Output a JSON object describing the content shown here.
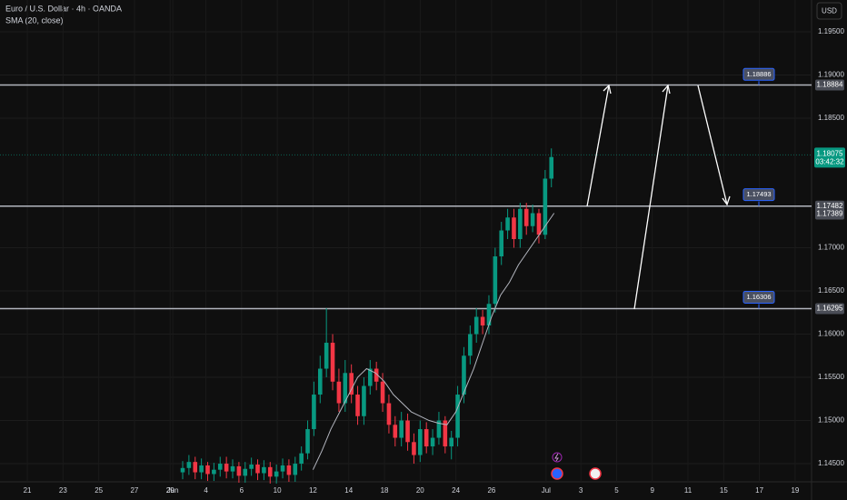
{
  "chart_data": {
    "type": "candlestick",
    "title": "Euro / U.S. Dollar · 4h · OANDA",
    "indicator": "SMA (20, close)",
    "currency": "USD",
    "up_color": "#089981",
    "down_color": "#f23645",
    "xlim": [
      -1.53,
      43.92
    ],
    "ylim": [
      1.1429,
      1.19868
    ],
    "xticks": [
      {
        "value": 0,
        "label": "21"
      },
      {
        "value": 2,
        "label": "23"
      },
      {
        "value": 4,
        "label": "25"
      },
      {
        "value": 6,
        "label": "27"
      },
      {
        "value": 8,
        "label": "29"
      },
      {
        "value": 8.15,
        "label": "Jun"
      },
      {
        "value": 10,
        "label": "4"
      },
      {
        "value": 12,
        "label": "6"
      },
      {
        "value": 14,
        "label": "10"
      },
      {
        "value": 16,
        "label": "12"
      },
      {
        "value": 18,
        "label": "14"
      },
      {
        "value": 20,
        "label": "18"
      },
      {
        "value": 22,
        "label": "20"
      },
      {
        "value": 24,
        "label": "24"
      },
      {
        "value": 26,
        "label": "26"
      },
      {
        "value": 29.05,
        "label": "Jul"
      },
      {
        "value": 31,
        "label": "3"
      },
      {
        "value": 33,
        "label": "5"
      },
      {
        "value": 35,
        "label": "9"
      },
      {
        "value": 37,
        "label": "11"
      },
      {
        "value": 39,
        "label": "15"
      },
      {
        "value": 41,
        "label": "17"
      },
      {
        "value": 43,
        "label": "19"
      }
    ],
    "yticks": [
      {
        "value": 1.145,
        "label": "1.14500"
      },
      {
        "value": 1.15,
        "label": "1.15000"
      },
      {
        "value": 1.155,
        "label": "1.15500"
      },
      {
        "value": 1.16,
        "label": "1.16000"
      },
      {
        "value": 1.165,
        "label": "1.16500"
      },
      {
        "value": 1.17,
        "label": "1.17000"
      },
      {
        "value": 1.185,
        "label": "1.18500"
      },
      {
        "value": 1.19,
        "label": "1.19000"
      },
      {
        "value": 1.195,
        "label": "1.19500"
      }
    ],
    "grid": true,
    "candles": {
      "x": [
        8.7,
        9.05,
        9.4,
        9.75,
        10.1,
        10.45,
        10.8,
        11.15,
        11.5,
        11.85,
        12.2,
        12.55,
        12.9,
        13.25,
        13.6,
        13.95,
        14.3,
        14.65,
        15.0,
        15.35,
        15.7,
        16.05,
        16.4,
        16.75,
        17.1,
        17.45,
        17.8,
        18.15,
        18.5,
        18.85,
        19.2,
        19.55,
        19.9,
        20.25,
        20.6,
        20.95,
        21.3,
        21.65,
        22.0,
        22.35,
        22.7,
        23.05,
        23.4,
        23.75,
        24.1,
        24.45,
        24.8,
        25.15,
        25.5,
        25.85,
        26.2,
        26.55,
        26.9,
        27.25,
        27.6,
        27.95,
        28.3,
        28.65,
        29.0,
        29.35
      ],
      "open": [
        1.144,
        1.1445,
        1.1452,
        1.144,
        1.1448,
        1.1438,
        1.1443,
        1.145,
        1.1441,
        1.1447,
        1.1436,
        1.1444,
        1.1449,
        1.1439,
        1.1446,
        1.1435,
        1.1441,
        1.1448,
        1.1437,
        1.145,
        1.1462,
        1.149,
        1.153,
        1.156,
        1.159,
        1.1545,
        1.152,
        1.1555,
        1.153,
        1.1505,
        1.154,
        1.156,
        1.1545,
        1.152,
        1.1495,
        1.148,
        1.15,
        1.1475,
        1.146,
        1.149,
        1.147,
        1.148,
        1.15,
        1.147,
        1.148,
        1.153,
        1.1575,
        1.16,
        1.162,
        1.161,
        1.1635,
        1.169,
        1.172,
        1.1735,
        1.171,
        1.1745,
        1.1725,
        1.174,
        1.1715,
        1.178
      ],
      "high": [
        1.1453,
        1.146,
        1.1458,
        1.1456,
        1.1452,
        1.1451,
        1.1458,
        1.1458,
        1.1455,
        1.1452,
        1.1452,
        1.1457,
        1.1455,
        1.1454,
        1.1452,
        1.1449,
        1.1456,
        1.1455,
        1.1458,
        1.147,
        1.15,
        1.1545,
        1.1575,
        1.163,
        1.16,
        1.156,
        1.157,
        1.1565,
        1.154,
        1.155,
        1.157,
        1.1568,
        1.1555,
        1.153,
        1.1505,
        1.151,
        1.1508,
        1.1485,
        1.15,
        1.1498,
        1.149,
        1.151,
        1.1505,
        1.1488,
        1.154,
        1.1585,
        1.161,
        1.163,
        1.1628,
        1.1645,
        1.17,
        1.173,
        1.1745,
        1.1745,
        1.1752,
        1.1752,
        1.175,
        1.1745,
        1.179,
        1.1815
      ],
      "low": [
        1.1432,
        1.1437,
        1.1432,
        1.1432,
        1.143,
        1.143,
        1.1435,
        1.1433,
        1.1433,
        1.1428,
        1.1428,
        1.1436,
        1.1431,
        1.1431,
        1.1427,
        1.1427,
        1.1433,
        1.1429,
        1.1429,
        1.1442,
        1.1455,
        1.1482,
        1.152,
        1.155,
        1.1535,
        1.151,
        1.151,
        1.152,
        1.1495,
        1.1495,
        1.153,
        1.1535,
        1.151,
        1.1485,
        1.147,
        1.147,
        1.1465,
        1.145,
        1.1452,
        1.1462,
        1.146,
        1.1472,
        1.1462,
        1.1455,
        1.147,
        1.152,
        1.1565,
        1.159,
        1.16,
        1.16,
        1.1625,
        1.168,
        1.171,
        1.17,
        1.17,
        1.1715,
        1.1718,
        1.1705,
        1.171,
        1.177
      ],
      "close": [
        1.1445,
        1.1452,
        1.144,
        1.1448,
        1.1438,
        1.1443,
        1.145,
        1.1441,
        1.1447,
        1.1436,
        1.1444,
        1.1449,
        1.1439,
        1.1446,
        1.1435,
        1.1441,
        1.1448,
        1.1437,
        1.145,
        1.1462,
        1.149,
        1.153,
        1.156,
        1.159,
        1.1545,
        1.152,
        1.1555,
        1.153,
        1.1505,
        1.154,
        1.156,
        1.1545,
        1.152,
        1.1495,
        1.148,
        1.15,
        1.1475,
        1.146,
        1.149,
        1.147,
        1.148,
        1.15,
        1.147,
        1.148,
        1.153,
        1.1575,
        1.16,
        1.162,
        1.161,
        1.1635,
        1.169,
        1.172,
        1.1735,
        1.171,
        1.1745,
        1.1725,
        1.174,
        1.1715,
        1.178,
        1.1805
      ]
    },
    "sma": {
      "color": "#b2b5be",
      "x": [
        16,
        16.5,
        17,
        17.5,
        18,
        18.5,
        19,
        19.5,
        20,
        20.5,
        21,
        21.5,
        22,
        22.5,
        23,
        23.5,
        24,
        24.5,
        25,
        25.5,
        26,
        26.5,
        27,
        27.5,
        28,
        28.5,
        29,
        29.5
      ],
      "values": [
        1.1443,
        1.1465,
        1.149,
        1.151,
        1.153,
        1.155,
        1.156,
        1.1555,
        1.1545,
        1.153,
        1.152,
        1.151,
        1.1505,
        1.15,
        1.1497,
        1.1495,
        1.151,
        1.1535,
        1.156,
        1.159,
        1.162,
        1.1645,
        1.166,
        1.168,
        1.1695,
        1.171,
        1.1725,
        1.174
      ]
    },
    "levels": [
      {
        "value": 1.18884,
        "tag": 1.18886
      },
      {
        "value": 1.17482,
        "tag": 1.17493
      },
      {
        "value": 1.16295,
        "tag": 1.16306
      }
    ],
    "axis_marks": [
      1.17389
    ],
    "last_price": 1.18075,
    "countdown": "03:42:32"
  }
}
